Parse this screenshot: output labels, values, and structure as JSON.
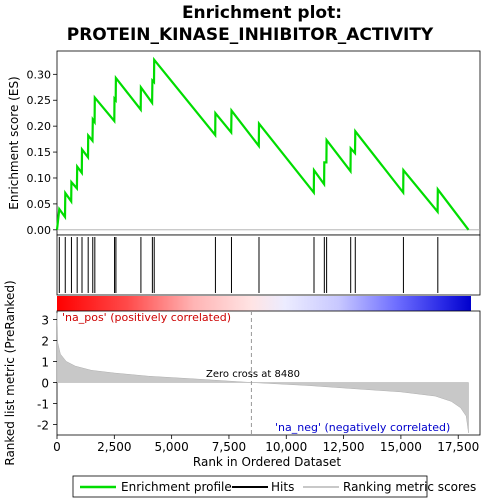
{
  "chart_data": {
    "type": "line",
    "title_line1": "Enrichment plot:",
    "title_line2": "PROTEIN_KINASE_INHIBITOR_ACTIVITY",
    "es_ylabel": "Enrichment score (ES)",
    "es_yticks": [
      "0.00",
      "0.05",
      "0.10",
      "0.15",
      "0.20",
      "0.25",
      "0.30"
    ],
    "es_ylim": [
      -0.01,
      0.345
    ],
    "xlim": [
      0,
      18000
    ],
    "es_series": {
      "name": "Enrichment profile",
      "color": "#00dd00",
      "points": [
        [
          0,
          0.0
        ],
        [
          100,
          0.04
        ],
        [
          350,
          0.025
        ],
        [
          360,
          0.071
        ],
        [
          620,
          0.055
        ],
        [
          630,
          0.092
        ],
        [
          870,
          0.08
        ],
        [
          880,
          0.122
        ],
        [
          1080,
          0.11
        ],
        [
          1090,
          0.155
        ],
        [
          1350,
          0.14
        ],
        [
          1360,
          0.182
        ],
        [
          1550,
          0.172
        ],
        [
          1560,
          0.213
        ],
        [
          1640,
          0.208
        ],
        [
          1650,
          0.255
        ],
        [
          2500,
          0.21
        ],
        [
          2510,
          0.253
        ],
        [
          2560,
          0.25
        ],
        [
          2570,
          0.293
        ],
        [
          3650,
          0.232
        ],
        [
          3660,
          0.275
        ],
        [
          4150,
          0.245
        ],
        [
          4160,
          0.288
        ],
        [
          4230,
          0.285
        ],
        [
          4240,
          0.328
        ],
        [
          6900,
          0.183
        ],
        [
          6910,
          0.225
        ],
        [
          7600,
          0.188
        ],
        [
          7610,
          0.23
        ],
        [
          8800,
          0.162
        ],
        [
          8810,
          0.205
        ],
        [
          11200,
          0.072
        ],
        [
          11210,
          0.115
        ],
        [
          11650,
          0.088
        ],
        [
          11660,
          0.13
        ],
        [
          11750,
          0.13
        ],
        [
          11760,
          0.173
        ],
        [
          12800,
          0.113
        ],
        [
          12810,
          0.157
        ],
        [
          13000,
          0.148
        ],
        [
          13010,
          0.19
        ],
        [
          15100,
          0.072
        ],
        [
          15110,
          0.115
        ],
        [
          16600,
          0.035
        ],
        [
          16610,
          0.078
        ],
        [
          17950,
          0.0
        ]
      ]
    },
    "hits": [
      100,
      360,
      630,
      880,
      1090,
      1360,
      1560,
      1650,
      2510,
      2570,
      3660,
      4160,
      4240,
      6910,
      7610,
      8810,
      11210,
      11660,
      11760,
      12810,
      13010,
      15110,
      16610
    ],
    "ranked_ylabel": "Ranked list metric (PreRanked)",
    "ranked_yticks": [
      "3",
      "2",
      "1",
      "0",
      "-1",
      "-2"
    ],
    "ranked_ylim": [
      -2.5,
      3.4
    ],
    "ranked_series": [
      [
        0,
        3.3
      ],
      [
        30,
        1.9
      ],
      [
        150,
        1.35
      ],
      [
        400,
        1.0
      ],
      [
        800,
        0.78
      ],
      [
        1500,
        0.58
      ],
      [
        2500,
        0.45
      ],
      [
        4000,
        0.3
      ],
      [
        6000,
        0.17
      ],
      [
        8480,
        0.0
      ],
      [
        11000,
        -0.15
      ],
      [
        13000,
        -0.3
      ],
      [
        15000,
        -0.45
      ],
      [
        16500,
        -0.65
      ],
      [
        17200,
        -0.9
      ],
      [
        17600,
        -1.2
      ],
      [
        17850,
        -1.6
      ],
      [
        17950,
        -2.4
      ]
    ],
    "xlabel": "Rank in Ordered Dataset",
    "xticks": [
      "0",
      "2,500",
      "5,000",
      "7,500",
      "10,000",
      "12,500",
      "15,000",
      "17,500"
    ],
    "zero_cross_label": "Zero cross at 8480",
    "zero_cross": 8480,
    "pos_label": "'na_pos' (positively correlated)",
    "neg_label": "'na_neg' (negatively correlated)",
    "legend": [
      "Enrichment profile",
      "Hits",
      "Ranking metric scores"
    ],
    "colors": {
      "es": "#00dd00",
      "pos_text": "#cc0000",
      "neg_text": "#0000cc",
      "metric_fill": "#c8c8c8"
    }
  }
}
